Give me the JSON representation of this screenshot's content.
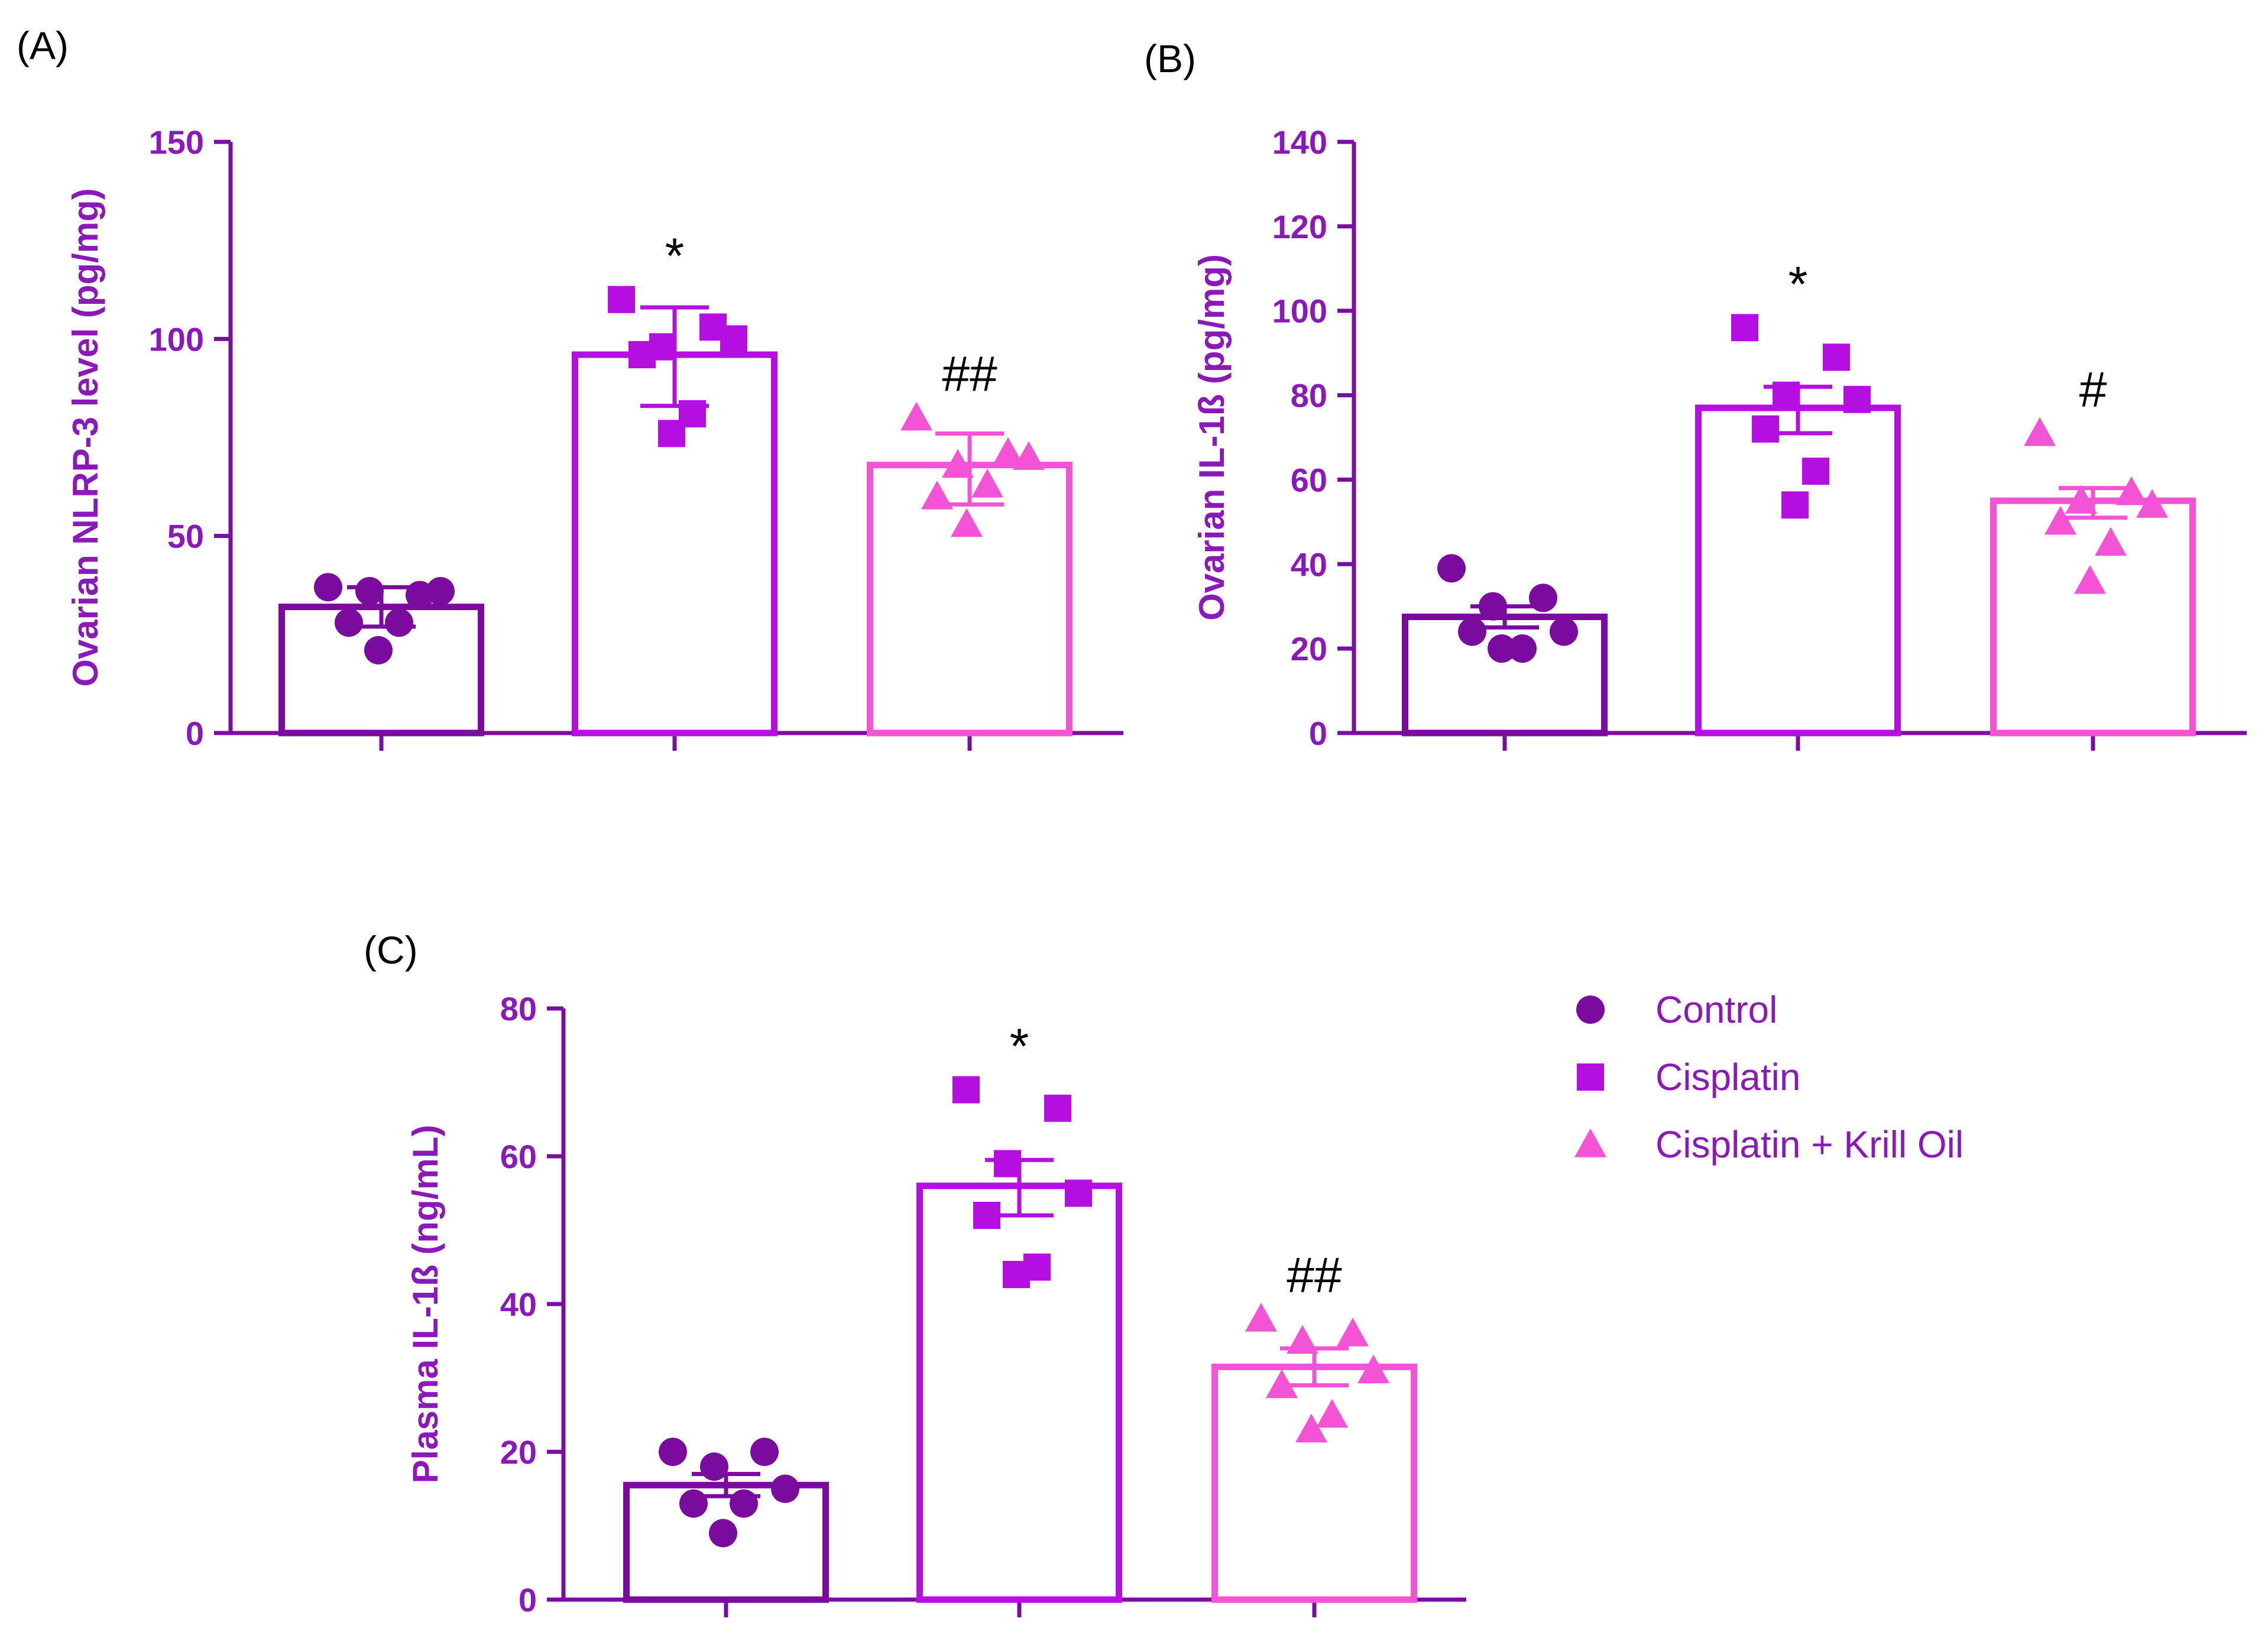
{
  "colors": {
    "axis": "#7a0ea0",
    "axis_text": "#8b18b8",
    "control": "#7b0b9e",
    "cisplatin": "#b50ee0",
    "krill": "#f453d6",
    "annotation": "#000000"
  },
  "legend": {
    "position": "right",
    "items": [
      {
        "label": "Control",
        "marker": "circle",
        "color_key": "control"
      },
      {
        "label": "Cisplatin",
        "marker": "square",
        "color_key": "cisplatin"
      },
      {
        "label": "Cisplatin + Krill Oil",
        "marker": "triangle",
        "color_key": "krill"
      }
    ]
  },
  "chart_data": [
    {
      "id": "A",
      "panel_label": "(A)",
      "type": "bar",
      "ylabel": "Ovarian NLRP-3 level (pg/mg)",
      "ylim": [
        0,
        150
      ],
      "yticks": [
        0,
        50,
        100,
        150
      ],
      "groups": [
        {
          "name": "Control",
          "marker": "circle",
          "color_key": "control",
          "mean": 32,
          "error": [
            27,
            37
          ],
          "points": [
            37,
            35,
            36,
            36,
            28,
            28,
            21
          ],
          "annotation": ""
        },
        {
          "name": "Cisplatin",
          "marker": "square",
          "color_key": "cisplatin",
          "mean": 96,
          "error": [
            83,
            108
          ],
          "points": [
            110,
            103,
            98,
            100,
            96,
            81,
            76
          ],
          "annotation": "*"
        },
        {
          "name": "Cisplatin + Krill Oil",
          "marker": "triangle",
          "color_key": "krill",
          "mean": 68,
          "error": [
            58,
            76
          ],
          "points": [
            80,
            71,
            68,
            70,
            60,
            63,
            53
          ],
          "annotation": "##"
        }
      ]
    },
    {
      "id": "B",
      "panel_label": "(B)",
      "type": "bar",
      "ylabel": "Ovarian IL-1ß (pg/mg)",
      "ylim": [
        0,
        140
      ],
      "yticks": [
        0,
        20,
        40,
        60,
        80,
        100,
        120,
        140
      ],
      "groups": [
        {
          "name": "Control",
          "marker": "circle",
          "color_key": "control",
          "mean": 27.5,
          "error": [
            25,
            30
          ],
          "points": [
            39,
            32,
            30,
            24,
            24,
            20,
            20
          ],
          "annotation": ""
        },
        {
          "name": "Cisplatin",
          "marker": "square",
          "color_key": "cisplatin",
          "mean": 77,
          "error": [
            71,
            82
          ],
          "points": [
            96,
            89,
            80,
            79,
            72,
            62,
            54
          ],
          "annotation": "*"
        },
        {
          "name": "Cisplatin + Krill Oil",
          "marker": "triangle",
          "color_key": "krill",
          "mean": 55,
          "error": [
            51,
            58
          ],
          "points": [
            71,
            57,
            55,
            54,
            50,
            45,
            36
          ],
          "annotation": "#"
        }
      ]
    },
    {
      "id": "C",
      "panel_label": "(C)",
      "type": "bar",
      "ylabel": "Plasma IL-1ß (ng/mL)",
      "ylim": [
        0,
        80
      ],
      "yticks": [
        0,
        20,
        40,
        60,
        80
      ],
      "groups": [
        {
          "name": "Control",
          "marker": "circle",
          "color_key": "control",
          "mean": 15.5,
          "error": [
            14,
            17
          ],
          "points": [
            20,
            20,
            18,
            15,
            13,
            13,
            9
          ],
          "annotation": ""
        },
        {
          "name": "Cisplatin",
          "marker": "square",
          "color_key": "cisplatin",
          "mean": 56,
          "error": [
            52,
            59.5
          ],
          "points": [
            69,
            66.5,
            59,
            55,
            52,
            45,
            44
          ],
          "annotation": "*"
        },
        {
          "name": "Cisplatin + Krill Oil",
          "marker": "triangle",
          "color_key": "krill",
          "mean": 31.5,
          "error": [
            29,
            34
          ],
          "points": [
            38,
            36,
            35,
            31,
            29,
            25,
            23
          ],
          "annotation": "##"
        }
      ]
    }
  ]
}
